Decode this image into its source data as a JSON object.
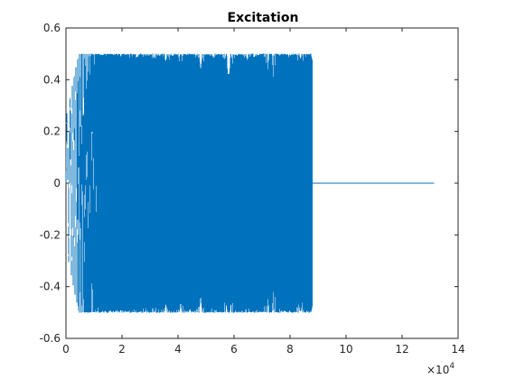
{
  "chart_data": {
    "type": "line",
    "title": "Excitation",
    "xlabel": "",
    "ylabel": "",
    "xlim": [
      0,
      140000
    ],
    "ylim": [
      -0.6,
      0.6
    ],
    "x_exponent_label": "×10",
    "x_exponent_power": "4",
    "xticks": [
      0,
      20000,
      40000,
      60000,
      80000,
      100000,
      120000,
      140000
    ],
    "xtick_labels": [
      "0",
      "2",
      "4",
      "6",
      "8",
      "10",
      "12",
      "14"
    ],
    "yticks": [
      -0.6,
      -0.4,
      -0.2,
      0,
      0.2,
      0.4,
      0.6
    ],
    "ytick_labels": [
      "-0.6",
      "-0.4",
      "-0.2",
      "0",
      "0.2",
      "0.4",
      "0.6"
    ],
    "grid": false,
    "series": [
      {
        "color": "#0072BD",
        "signal": "chirp",
        "ramp_up_end": 4500,
        "ramp_up_start_amplitude": 0.25,
        "amplitude": 0.5,
        "signal_start": 0,
        "signal_end": 88000,
        "zero_tail_end": 131500
      }
    ]
  }
}
